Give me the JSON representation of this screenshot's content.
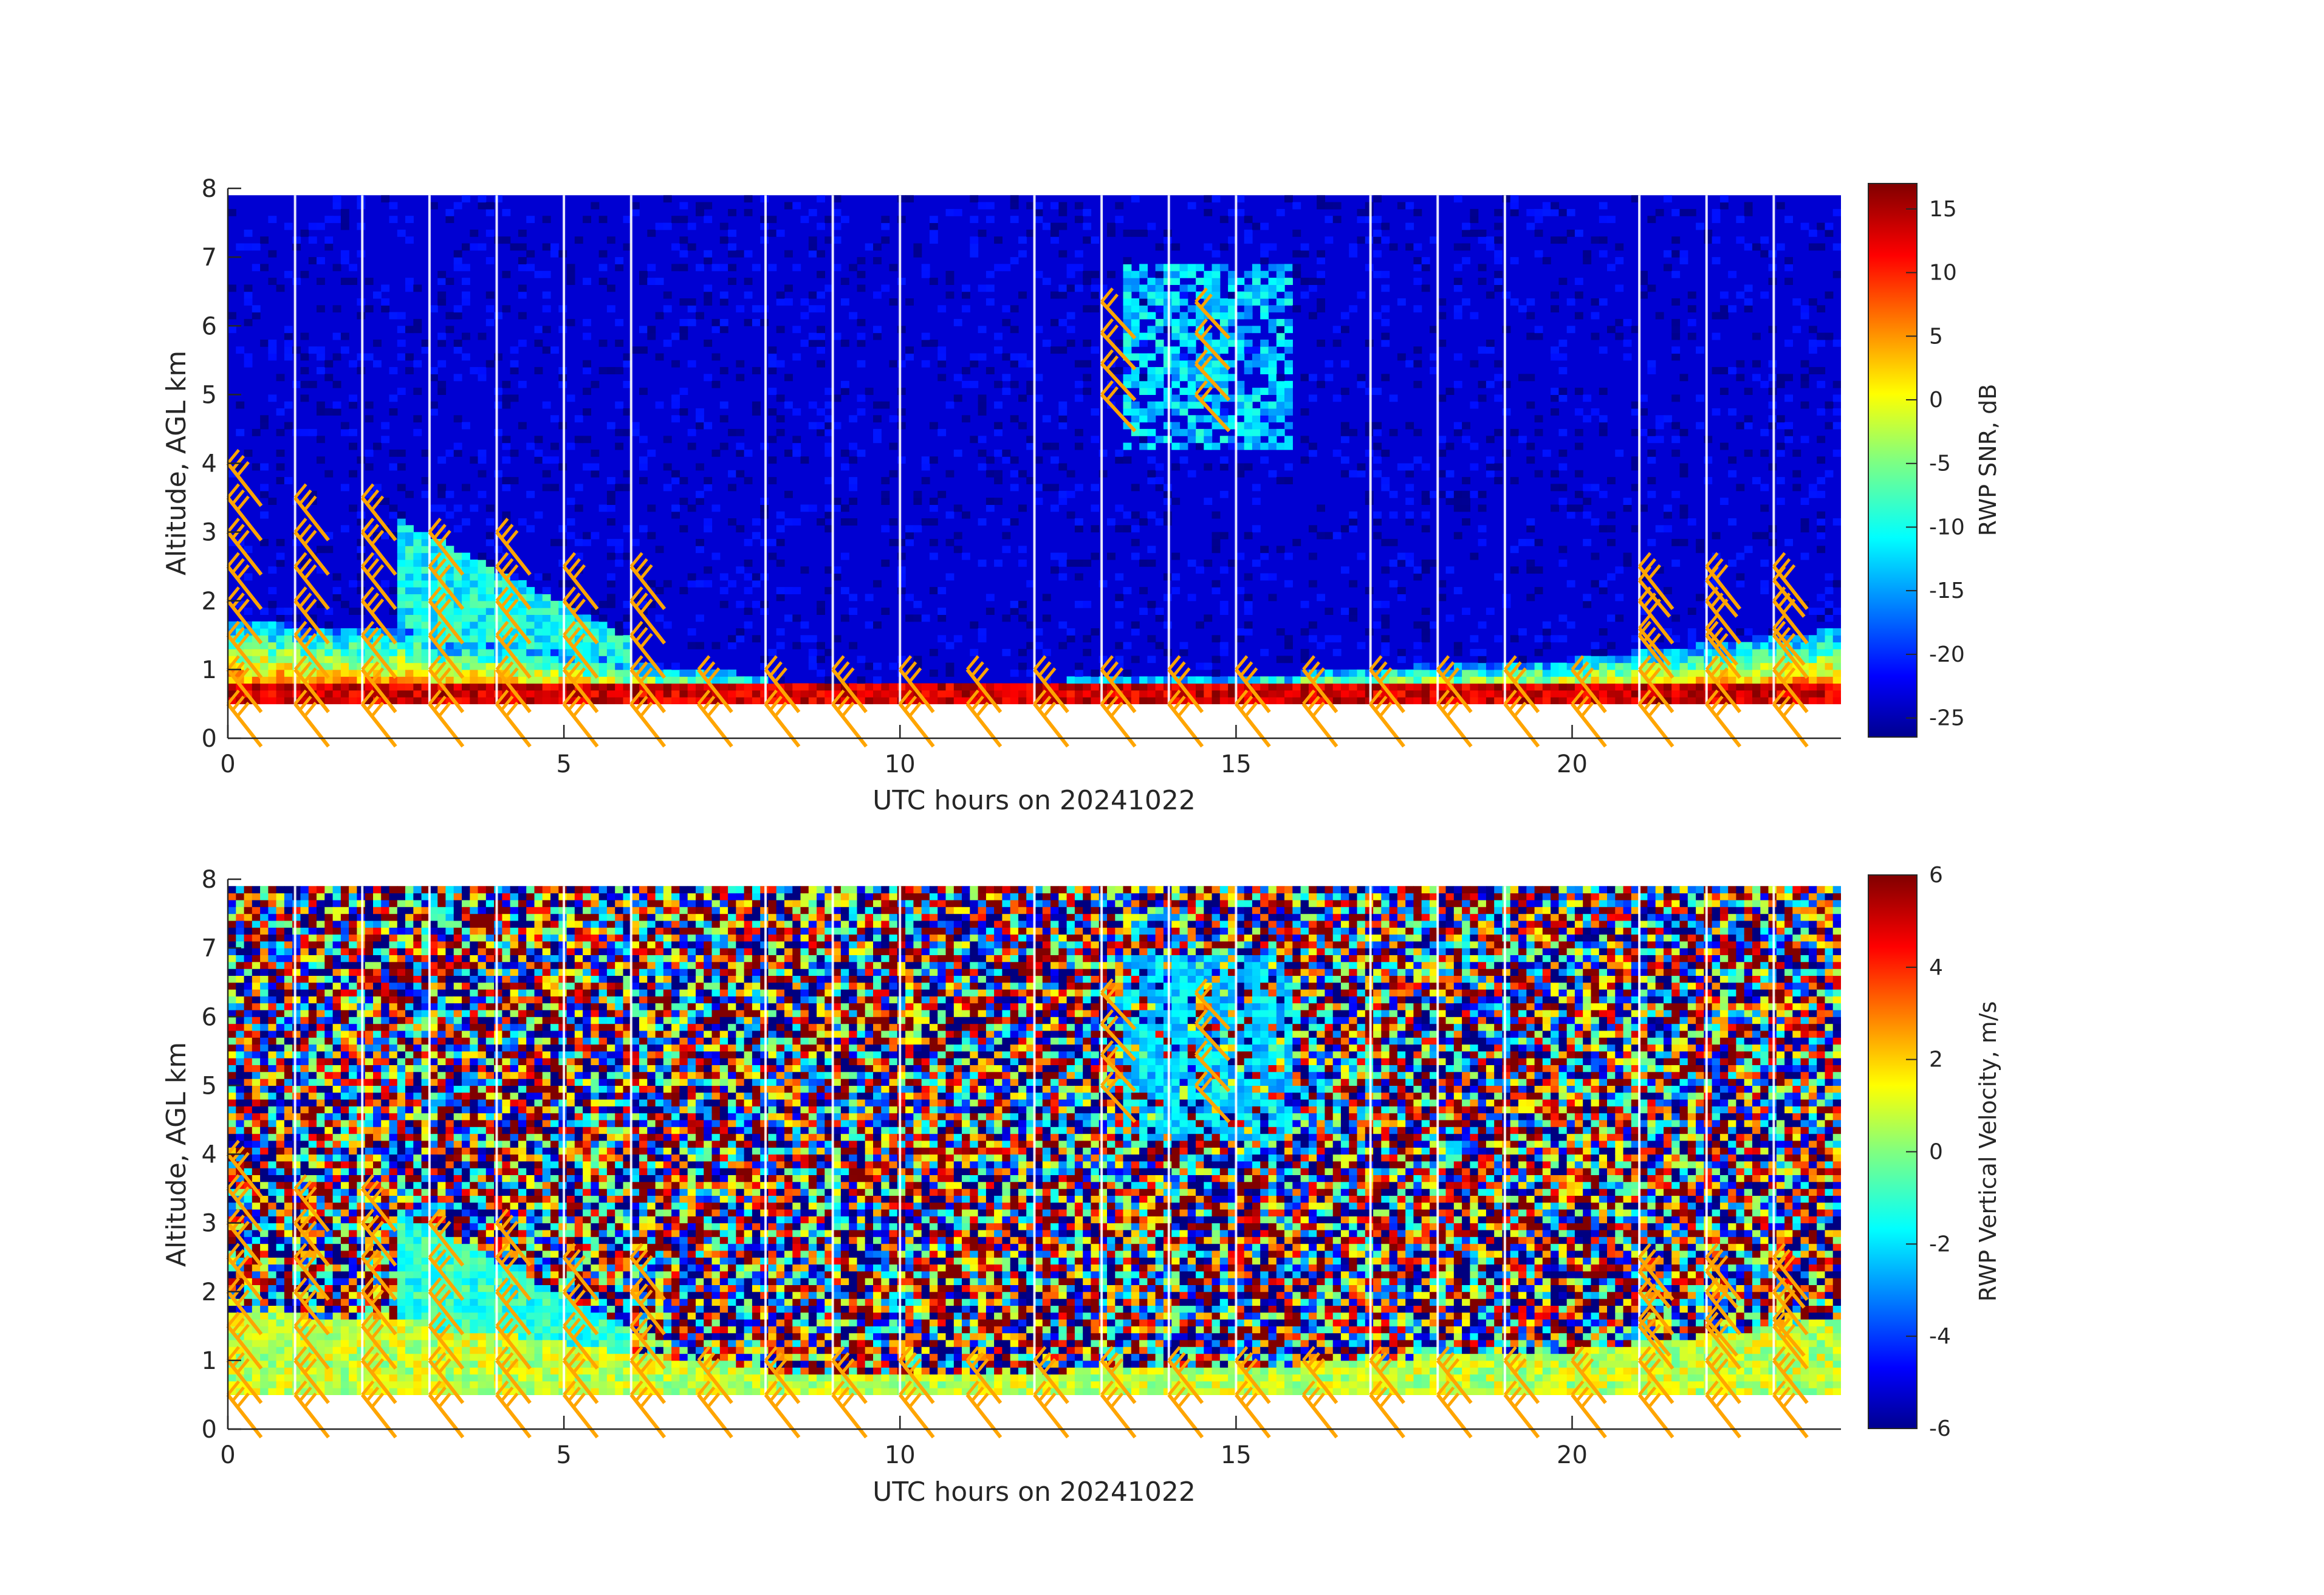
{
  "chart_data": [
    {
      "type": "heatmap",
      "title": "",
      "xlabel": "UTC hours on 20241022",
      "ylabel": "Altitude, AGL km",
      "colorbar_label": "RWP SNR, dB",
      "xlim": [
        0,
        24
      ],
      "ylim": [
        0,
        8
      ],
      "x_ticks": [
        0,
        5,
        10,
        15,
        20
      ],
      "y_ticks": [
        0,
        1,
        2,
        3,
        4,
        5,
        6,
        7,
        8
      ],
      "colorbar_range": [
        -26.5,
        17
      ],
      "colorbar_ticks": [
        15,
        10,
        5,
        0,
        -5,
        -10,
        -15,
        -20,
        -25
      ],
      "colormap": "jet",
      "data_bottom_km": 0.5,
      "data_top_km": 7.9,
      "white_gap_hours": [
        1,
        2,
        3,
        4,
        5,
        6,
        8,
        9,
        10,
        12,
        13,
        14,
        15,
        17,
        18,
        19,
        21,
        22,
        23
      ],
      "wind_barb_color": "#ffa500"
    },
    {
      "type": "heatmap",
      "title": "",
      "xlabel": "UTC hours on 20241022",
      "ylabel": "Altitude, AGL km",
      "colorbar_label": "RWP Vertical Velocity, m/s",
      "xlim": [
        0,
        24
      ],
      "ylim": [
        0,
        8
      ],
      "x_ticks": [
        0,
        5,
        10,
        15,
        20
      ],
      "y_ticks": [
        0,
        1,
        2,
        3,
        4,
        5,
        6,
        7,
        8
      ],
      "colorbar_range": [
        -6,
        6
      ],
      "colorbar_ticks": [
        6,
        4,
        2,
        0,
        -2,
        -4,
        -6
      ],
      "colormap": "jet",
      "data_bottom_km": 0.5,
      "data_top_km": 7.9,
      "white_gap_hours": [
        1,
        2,
        3,
        4,
        5,
        6,
        8,
        9,
        10,
        12,
        13,
        14,
        15,
        17,
        18,
        19,
        21,
        22,
        23
      ],
      "wind_barb_color": "#ffa500"
    }
  ]
}
